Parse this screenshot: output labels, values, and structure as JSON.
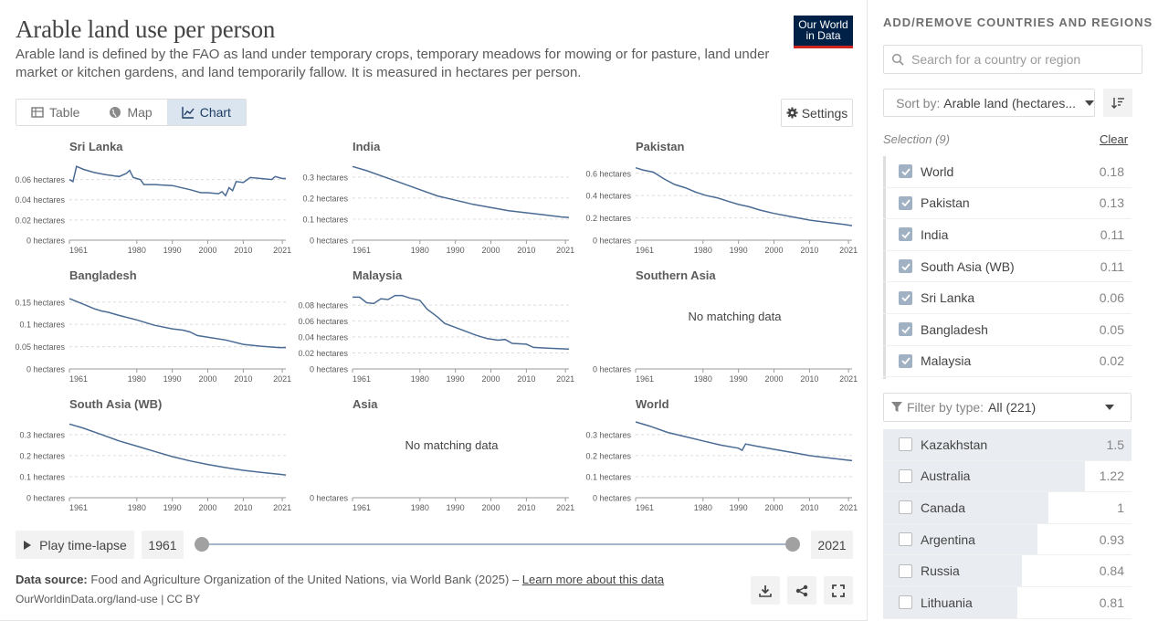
{
  "header": {
    "title": "Arable land use per person",
    "subtitle": "Arable land is defined by the FAO as land under temporary crops, temporary meadows for mowing or for pasture, land under market or kitchen gardens, and land temporarily fallow. It is measured in hectares per person.",
    "logo_line1": "Our World",
    "logo_line2": "in Data"
  },
  "tabs": [
    {
      "label": "Table",
      "icon": "table-icon",
      "active": false
    },
    {
      "label": "Map",
      "icon": "globe-icon",
      "active": false
    },
    {
      "label": "Chart",
      "icon": "line-chart-icon",
      "active": true
    }
  ],
  "settings_label": "Settings",
  "timeline": {
    "play_label": "Play time-lapse",
    "start_year": "1961",
    "end_year": "2021"
  },
  "footer": {
    "source_label": "Data source:",
    "source_text": "Food and Agriculture Organization of the United Nations, via World Bank (2025) –",
    "learn_more": "Learn more about this data",
    "url": "OurWorldinData.org/land-use | CC BY"
  },
  "sidebar": {
    "title": "ADD/REMOVE COUNTRIES AND REGIONS",
    "search_placeholder": "Search for a country or region",
    "sort_label": "Sort by:",
    "sort_value": "Arable land (hectares...",
    "selection_label": "Selection (9)",
    "clear_label": "Clear",
    "selected": [
      {
        "name": "World",
        "value": "0.18"
      },
      {
        "name": "Pakistan",
        "value": "0.13"
      },
      {
        "name": "India",
        "value": "0.11"
      },
      {
        "name": "South Asia (WB)",
        "value": "0.11"
      },
      {
        "name": "Sri Lanka",
        "value": "0.06"
      },
      {
        "name": "Bangladesh",
        "value": "0.05"
      },
      {
        "name": "Malaysia",
        "value": "0.02"
      }
    ],
    "filter_label": "Filter by type:",
    "filter_value": "All (221)",
    "available": [
      {
        "name": "Kazakhstan",
        "value": "1.5",
        "fraction": 1.0
      },
      {
        "name": "Australia",
        "value": "1.22",
        "fraction": 0.813
      },
      {
        "name": "Canada",
        "value": "1",
        "fraction": 0.667
      },
      {
        "name": "Argentina",
        "value": "0.93",
        "fraction": 0.62
      },
      {
        "name": "Russia",
        "value": "0.84",
        "fraction": 0.56
      },
      {
        "name": "Lithuania",
        "value": "0.81",
        "fraction": 0.54
      }
    ]
  },
  "chart_data": {
    "type": "line",
    "unit": "hectares",
    "no_data_text": "No matching data",
    "xticks": [
      1961,
      1980,
      1990,
      2000,
      2010,
      2021
    ],
    "xlim": [
      1961,
      2022
    ],
    "color": "#4a6b94",
    "panels": [
      {
        "name": "Sri Lanka",
        "ylim": [
          0,
          0.075
        ],
        "yticks": [
          0,
          0.02,
          0.04,
          0.06
        ],
        "ytick_labels": [
          "0 hectares",
          "0.02 hectares",
          "0.04 hectares",
          "0.06 hectares"
        ],
        "points": [
          [
            1961,
            0.06
          ],
          [
            1962,
            0.058
          ],
          [
            1963,
            0.073
          ],
          [
            1965,
            0.07
          ],
          [
            1968,
            0.067
          ],
          [
            1971,
            0.065
          ],
          [
            1975,
            0.063
          ],
          [
            1977,
            0.066
          ],
          [
            1978,
            0.069
          ],
          [
            1979,
            0.062
          ],
          [
            1981,
            0.06
          ],
          [
            1982,
            0.055
          ],
          [
            1985,
            0.055
          ],
          [
            1990,
            0.054
          ],
          [
            1995,
            0.05
          ],
          [
            1998,
            0.047
          ],
          [
            2000,
            0.047
          ],
          [
            2003,
            0.046
          ],
          [
            2004,
            0.048
          ],
          [
            2005,
            0.044
          ],
          [
            2006,
            0.052
          ],
          [
            2007,
            0.049
          ],
          [
            2008,
            0.058
          ],
          [
            2010,
            0.057
          ],
          [
            2012,
            0.062
          ],
          [
            2015,
            0.061
          ],
          [
            2018,
            0.06
          ],
          [
            2019,
            0.063
          ],
          [
            2021,
            0.061
          ],
          [
            2022,
            0.061
          ]
        ]
      },
      {
        "name": "India",
        "ylim": [
          0,
          0.36
        ],
        "yticks": [
          0,
          0.1,
          0.2,
          0.3
        ],
        "ytick_labels": [
          "0 hectares",
          "0.1 hectares",
          "0.2 hectares",
          "0.3 hectares"
        ],
        "points": [
          [
            1961,
            0.35
          ],
          [
            1965,
            0.33
          ],
          [
            1970,
            0.3
          ],
          [
            1975,
            0.27
          ],
          [
            1980,
            0.24
          ],
          [
            1985,
            0.21
          ],
          [
            1990,
            0.19
          ],
          [
            1995,
            0.17
          ],
          [
            2000,
            0.155
          ],
          [
            2005,
            0.14
          ],
          [
            2010,
            0.13
          ],
          [
            2015,
            0.12
          ],
          [
            2020,
            0.11
          ],
          [
            2022,
            0.108
          ]
        ]
      },
      {
        "name": "Pakistan",
        "ylim": [
          0,
          0.68
        ],
        "yticks": [
          0,
          0.2,
          0.4,
          0.6
        ],
        "ytick_labels": [
          "0 hectares",
          "0.2 hectares",
          "0.4 hectares",
          "0.6 hectares"
        ],
        "points": [
          [
            1961,
            0.65
          ],
          [
            1963,
            0.63
          ],
          [
            1966,
            0.61
          ],
          [
            1969,
            0.55
          ],
          [
            1972,
            0.5
          ],
          [
            1975,
            0.47
          ],
          [
            1978,
            0.43
          ],
          [
            1981,
            0.4
          ],
          [
            1984,
            0.38
          ],
          [
            1987,
            0.35
          ],
          [
            1990,
            0.32
          ],
          [
            1993,
            0.3
          ],
          [
            1996,
            0.27
          ],
          [
            2000,
            0.24
          ],
          [
            2005,
            0.21
          ],
          [
            2010,
            0.18
          ],
          [
            2015,
            0.16
          ],
          [
            2020,
            0.14
          ],
          [
            2022,
            0.13
          ]
        ]
      },
      {
        "name": "Bangladesh",
        "ylim": [
          0,
          0.17
        ],
        "yticks": [
          0,
          0.05,
          0.1,
          0.15
        ],
        "ytick_labels": [
          "0 hectares",
          "0.05 hectares",
          "0.1 hectares",
          "0.15 hectares"
        ],
        "points": [
          [
            1961,
            0.158
          ],
          [
            1965,
            0.145
          ],
          [
            1968,
            0.135
          ],
          [
            1970,
            0.13
          ],
          [
            1972,
            0.127
          ],
          [
            1975,
            0.12
          ],
          [
            1980,
            0.11
          ],
          [
            1985,
            0.098
          ],
          [
            1990,
            0.09
          ],
          [
            1993,
            0.087
          ],
          [
            1995,
            0.083
          ],
          [
            1997,
            0.075
          ],
          [
            2000,
            0.071
          ],
          [
            2005,
            0.065
          ],
          [
            2010,
            0.055
          ],
          [
            2015,
            0.051
          ],
          [
            2020,
            0.048
          ],
          [
            2022,
            0.048
          ]
        ]
      },
      {
        "name": "Malaysia",
        "ylim": [
          0,
          0.095
        ],
        "yticks": [
          0,
          0.02,
          0.04,
          0.06,
          0.08
        ],
        "ytick_labels": [
          "0 hectares",
          "0.02 hectares",
          "0.04 hectares",
          "0.06 hectares",
          "0.08 hectares"
        ],
        "points": [
          [
            1961,
            0.09
          ],
          [
            1963,
            0.09
          ],
          [
            1965,
            0.083
          ],
          [
            1967,
            0.082
          ],
          [
            1969,
            0.088
          ],
          [
            1971,
            0.087
          ],
          [
            1973,
            0.092
          ],
          [
            1975,
            0.092
          ],
          [
            1977,
            0.089
          ],
          [
            1980,
            0.086
          ],
          [
            1982,
            0.075
          ],
          [
            1985,
            0.065
          ],
          [
            1987,
            0.057
          ],
          [
            1990,
            0.052
          ],
          [
            1993,
            0.047
          ],
          [
            1996,
            0.042
          ],
          [
            1999,
            0.038
          ],
          [
            2002,
            0.036
          ],
          [
            2004,
            0.037
          ],
          [
            2006,
            0.032
          ],
          [
            2010,
            0.031
          ],
          [
            2012,
            0.027
          ],
          [
            2016,
            0.026
          ],
          [
            2022,
            0.025
          ]
        ]
      },
      {
        "name": "Southern Asia",
        "ylim": [
          0,
          1
        ],
        "yticks": [
          0
        ],
        "ytick_labels": [
          "0 hectares"
        ],
        "points": []
      },
      {
        "name": "South Asia (WB)",
        "ylim": [
          0,
          0.36
        ],
        "yticks": [
          0,
          0.1,
          0.2,
          0.3
        ],
        "ytick_labels": [
          "0 hectares",
          "0.1 hectares",
          "0.2 hectares",
          "0.3 hectares"
        ],
        "points": [
          [
            1961,
            0.35
          ],
          [
            1965,
            0.33
          ],
          [
            1970,
            0.3
          ],
          [
            1975,
            0.27
          ],
          [
            1980,
            0.245
          ],
          [
            1985,
            0.22
          ],
          [
            1990,
            0.195
          ],
          [
            1995,
            0.175
          ],
          [
            2000,
            0.158
          ],
          [
            2005,
            0.143
          ],
          [
            2010,
            0.13
          ],
          [
            2015,
            0.12
          ],
          [
            2020,
            0.112
          ],
          [
            2022,
            0.108
          ]
        ]
      },
      {
        "name": "Asia",
        "ylim": [
          0,
          1
        ],
        "yticks": [
          0
        ],
        "ytick_labels": [
          "0 hectares"
        ],
        "points": []
      },
      {
        "name": "World",
        "ylim": [
          0,
          0.36
        ],
        "yticks": [
          0,
          0.1,
          0.2,
          0.3
        ],
        "ytick_labels": [
          "0 hectares",
          "0.1 hectares",
          "0.2 hectares",
          "0.3 hectares"
        ],
        "points": [
          [
            1961,
            0.36
          ],
          [
            1965,
            0.34
          ],
          [
            1970,
            0.31
          ],
          [
            1975,
            0.29
          ],
          [
            1980,
            0.27
          ],
          [
            1985,
            0.25
          ],
          [
            1990,
            0.235
          ],
          [
            1991,
            0.225
          ],
          [
            1992,
            0.255
          ],
          [
            1995,
            0.245
          ],
          [
            2000,
            0.23
          ],
          [
            2005,
            0.215
          ],
          [
            2010,
            0.2
          ],
          [
            2015,
            0.19
          ],
          [
            2020,
            0.18
          ],
          [
            2022,
            0.176
          ]
        ]
      }
    ]
  }
}
